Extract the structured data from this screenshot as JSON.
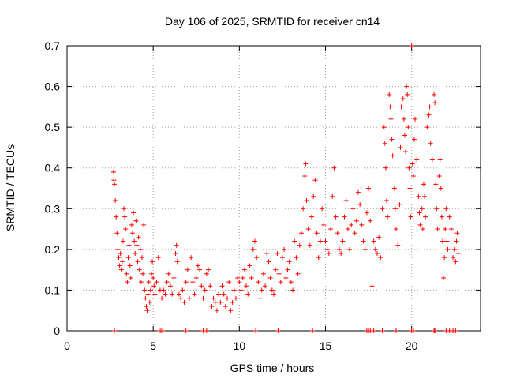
{
  "chart_data": {
    "type": "scatter",
    "title": "Day 106 of 2025, SRMTID for receiver cn14",
    "xlabel": "GPS time / hours",
    "ylabel": "SRMTID / TECUs",
    "xlim": [
      0,
      24
    ],
    "ylim": [
      0,
      0.7
    ],
    "xticks": [
      0,
      5,
      10,
      15,
      20
    ],
    "yticks": [
      0,
      0.1,
      0.2,
      0.3,
      0.4,
      0.5,
      0.6,
      0.7
    ],
    "grid": true,
    "marker": "plus",
    "color": "#ff0000",
    "series": [
      {
        "name": "cn14",
        "points": [
          [
            2.7,
            0.39
          ],
          [
            2.72,
            0.37
          ],
          [
            2.75,
            0.36
          ],
          [
            2.8,
            0.32
          ],
          [
            2.85,
            0.28
          ],
          [
            2.9,
            0.24
          ],
          [
            2.95,
            0.2
          ],
          [
            3.0,
            0.18
          ],
          [
            3.05,
            0.16
          ],
          [
            3.1,
            0.19
          ],
          [
            3.15,
            0.15
          ],
          [
            3.2,
            0.17
          ],
          [
            3.25,
            0.22
          ],
          [
            3.3,
            0.3
          ],
          [
            3.35,
            0.28
          ],
          [
            3.4,
            0.25
          ],
          [
            3.45,
            0.14
          ],
          [
            3.5,
            0.12
          ],
          [
            3.55,
            0.18
          ],
          [
            3.6,
            0.21
          ],
          [
            3.65,
            0.16
          ],
          [
            3.7,
            0.13
          ],
          [
            3.75,
            0.26
          ],
          [
            3.8,
            0.24
          ],
          [
            3.85,
            0.29
          ],
          [
            3.9,
            0.22
          ],
          [
            3.95,
            0.19
          ],
          [
            4.0,
            0.27
          ],
          [
            4.05,
            0.21
          ],
          [
            4.1,
            0.17
          ],
          [
            4.15,
            0.23
          ],
          [
            4.2,
            0.15
          ],
          [
            4.25,
            0.2
          ],
          [
            4.3,
            0.12
          ],
          [
            4.35,
            0.18
          ],
          [
            4.4,
            0.14
          ],
          [
            4.45,
            0.26
          ],
          [
            4.5,
            0.1
          ],
          [
            4.55,
            0.08
          ],
          [
            4.6,
            0.06
          ],
          [
            4.65,
            0.05
          ],
          [
            4.7,
            0.09
          ],
          [
            4.75,
            0.12
          ],
          [
            4.8,
            0.07
          ],
          [
            4.85,
            0.1
          ],
          [
            4.9,
            0.14
          ],
          [
            4.95,
            0.17
          ],
          [
            5.0,
            0.13
          ],
          [
            5.05,
            0.11
          ],
          [
            5.1,
            0.09
          ],
          [
            5.2,
            0.12
          ],
          [
            5.3,
            0.18
          ],
          [
            5.4,
            0.1
          ],
          [
            5.5,
            0.08
          ],
          [
            5.6,
            0.1
          ],
          [
            5.7,
            0.09
          ],
          [
            5.8,
            0.12
          ],
          [
            5.9,
            0.14
          ],
          [
            6.0,
            0.11
          ],
          [
            6.1,
            0.09
          ],
          [
            6.2,
            0.13
          ],
          [
            6.3,
            0.19
          ],
          [
            6.35,
            0.21
          ],
          [
            6.4,
            0.17
          ],
          [
            6.5,
            0.09
          ],
          [
            6.6,
            0.08
          ],
          [
            6.7,
            0.1
          ],
          [
            6.8,
            0.07
          ],
          [
            6.9,
            0.12
          ],
          [
            7.0,
            0.15
          ],
          [
            7.1,
            0.08
          ],
          [
            7.2,
            0.18
          ],
          [
            7.3,
            0.12
          ],
          [
            7.4,
            0.09
          ],
          [
            7.5,
            0.13
          ],
          [
            7.6,
            0.16
          ],
          [
            7.7,
            0.15
          ],
          [
            7.8,
            0.11
          ],
          [
            7.9,
            0.08
          ],
          [
            8.0,
            0.1
          ],
          [
            8.1,
            0.14
          ],
          [
            8.2,
            0.15
          ],
          [
            8.3,
            0.11
          ],
          [
            8.4,
            0.06
          ],
          [
            8.5,
            0.08
          ],
          [
            8.6,
            0.07
          ],
          [
            8.7,
            0.05
          ],
          [
            8.8,
            0.09
          ],
          [
            8.9,
            0.07
          ],
          [
            9.0,
            0.11
          ],
          [
            9.1,
            0.09
          ],
          [
            9.2,
            0.06
          ],
          [
            9.3,
            0.08
          ],
          [
            9.4,
            0.12
          ],
          [
            9.5,
            0.05
          ],
          [
            9.6,
            0.07
          ],
          [
            9.7,
            0.1
          ],
          [
            9.8,
            0.08
          ],
          [
            9.9,
            0.13
          ],
          [
            10.0,
            0.12
          ],
          [
            10.1,
            0.1
          ],
          [
            10.2,
            0.13
          ],
          [
            10.3,
            0.15
          ],
          [
            10.4,
            0.11
          ],
          [
            10.5,
            0.09
          ],
          [
            10.6,
            0.16
          ],
          [
            10.7,
            0.13
          ],
          [
            10.8,
            0.2
          ],
          [
            10.9,
            0.22
          ],
          [
            11.0,
            0.18
          ],
          [
            11.1,
            0.12
          ],
          [
            11.2,
            0.08
          ],
          [
            11.3,
            0.1
          ],
          [
            11.4,
            0.14
          ],
          [
            11.5,
            0.11
          ],
          [
            11.6,
            0.19
          ],
          [
            11.7,
            0.17
          ],
          [
            11.8,
            0.13
          ],
          [
            11.9,
            0.1
          ],
          [
            12.0,
            0.09
          ],
          [
            12.1,
            0.15
          ],
          [
            12.2,
            0.19
          ],
          [
            12.3,
            0.14
          ],
          [
            12.4,
            0.12
          ],
          [
            12.5,
            0.18
          ],
          [
            12.6,
            0.2
          ],
          [
            12.7,
            0.13
          ],
          [
            12.8,
            0.15
          ],
          [
            12.9,
            0.17
          ],
          [
            13.0,
            0.12
          ],
          [
            13.1,
            0.1
          ],
          [
            13.2,
            0.22
          ],
          [
            13.3,
            0.18
          ],
          [
            13.4,
            0.14
          ],
          [
            13.5,
            0.21
          ],
          [
            13.6,
            0.24
          ],
          [
            13.7,
            0.3
          ],
          [
            13.8,
            0.38
          ],
          [
            13.85,
            0.41
          ],
          [
            13.9,
            0.32
          ],
          [
            14.0,
            0.25
          ],
          [
            14.1,
            0.21
          ],
          [
            14.2,
            0.28
          ],
          [
            14.3,
            0.33
          ],
          [
            14.4,
            0.37
          ],
          [
            14.5,
            0.24
          ],
          [
            14.6,
            0.18
          ],
          [
            14.7,
            0.22
          ],
          [
            14.8,
            0.3
          ],
          [
            14.9,
            0.26
          ],
          [
            15.0,
            0.22
          ],
          [
            15.1,
            0.2
          ],
          [
            15.2,
            0.19
          ],
          [
            15.3,
            0.25
          ],
          [
            15.4,
            0.33
          ],
          [
            15.5,
            0.4
          ],
          [
            15.6,
            0.28
          ],
          [
            15.7,
            0.24
          ],
          [
            15.8,
            0.2
          ],
          [
            15.9,
            0.19
          ],
          [
            16.0,
            0.22
          ],
          [
            16.1,
            0.28
          ],
          [
            16.2,
            0.32
          ],
          [
            16.3,
            0.25
          ],
          [
            16.4,
            0.2
          ],
          [
            16.5,
            0.26
          ],
          [
            16.6,
            0.3
          ],
          [
            16.7,
            0.24
          ],
          [
            16.8,
            0.27
          ],
          [
            16.9,
            0.34
          ],
          [
            17.0,
            0.31
          ],
          [
            17.1,
            0.26
          ],
          [
            17.2,
            0.22
          ],
          [
            17.3,
            0.2
          ],
          [
            17.4,
            0.29
          ],
          [
            17.5,
            0.35
          ],
          [
            17.6,
            0.27
          ],
          [
            17.7,
            0.11
          ],
          [
            17.8,
            0.22
          ],
          [
            17.9,
            0.2
          ],
          [
            18.0,
            0.19
          ],
          [
            18.1,
            0.23
          ],
          [
            18.2,
            0.18
          ],
          [
            18.3,
            0.3
          ],
          [
            18.4,
            0.5
          ],
          [
            18.45,
            0.46
          ],
          [
            18.5,
            0.4
          ],
          [
            18.55,
            0.32
          ],
          [
            18.6,
            0.28
          ],
          [
            18.7,
            0.58
          ],
          [
            18.75,
            0.55
          ],
          [
            18.8,
            0.52
          ],
          [
            18.85,
            0.47
          ],
          [
            18.9,
            0.43
          ],
          [
            19.0,
            0.35
          ],
          [
            19.05,
            0.3
          ],
          [
            19.1,
            0.25
          ],
          [
            19.2,
            0.21
          ],
          [
            19.3,
            0.31
          ],
          [
            19.35,
            0.45
          ],
          [
            19.4,
            0.55
          ],
          [
            19.5,
            0.57
          ],
          [
            19.55,
            0.52
          ],
          [
            19.6,
            0.48
          ],
          [
            19.65,
            0.44
          ],
          [
            19.7,
            0.6
          ],
          [
            19.75,
            0.58
          ],
          [
            19.8,
            0.5
          ],
          [
            19.85,
            0.4
          ],
          [
            19.9,
            0.35
          ],
          [
            19.95,
            0.28
          ],
          [
            20.0,
            0.7
          ],
          [
            20.05,
            0.41
          ],
          [
            20.1,
            0.38
          ],
          [
            20.15,
            0.47
          ],
          [
            20.2,
            0.52
          ],
          [
            20.3,
            0.42
          ],
          [
            20.4,
            0.33
          ],
          [
            20.45,
            0.29
          ],
          [
            20.5,
            0.26
          ],
          [
            20.6,
            0.3
          ],
          [
            20.65,
            0.25
          ],
          [
            20.7,
            0.36
          ],
          [
            20.75,
            0.33
          ],
          [
            20.8,
            0.28
          ],
          [
            20.9,
            0.5
          ],
          [
            21.0,
            0.53
          ],
          [
            21.05,
            0.55
          ],
          [
            21.1,
            0.46
          ],
          [
            21.2,
            0.42
          ],
          [
            21.3,
            0.58
          ],
          [
            21.35,
            0.56
          ],
          [
            21.4,
            0.36
          ],
          [
            21.45,
            0.3
          ],
          [
            21.5,
            0.25
          ],
          [
            21.6,
            0.38
          ],
          [
            21.65,
            0.42
          ],
          [
            21.7,
            0.35
          ],
          [
            21.75,
            0.28
          ],
          [
            21.8,
            0.22
          ],
          [
            21.85,
            0.13
          ],
          [
            21.9,
            0.18
          ],
          [
            21.95,
            0.25
          ],
          [
            22.0,
            0.3
          ],
          [
            22.05,
            0.22
          ],
          [
            22.1,
            0.2
          ],
          [
            22.2,
            0.28
          ],
          [
            22.3,
            0.25
          ],
          [
            22.4,
            0.18
          ],
          [
            22.5,
            0.2
          ],
          [
            22.55,
            0.17
          ],
          [
            22.6,
            0.22
          ],
          [
            22.65,
            0.24
          ],
          [
            22.7,
            0.19
          ]
        ]
      }
    ],
    "axis_markers_at_zero": [
      2.75,
      5.35,
      5.45,
      5.55,
      6.9,
      7.9,
      8.1,
      10.95,
      12.25,
      14.25,
      17.4,
      17.5,
      17.6,
      17.7,
      17.8,
      18.3,
      19.1,
      20.0,
      20.1,
      21.3,
      21.35,
      22.0,
      22.2,
      22.4,
      22.55
    ]
  }
}
